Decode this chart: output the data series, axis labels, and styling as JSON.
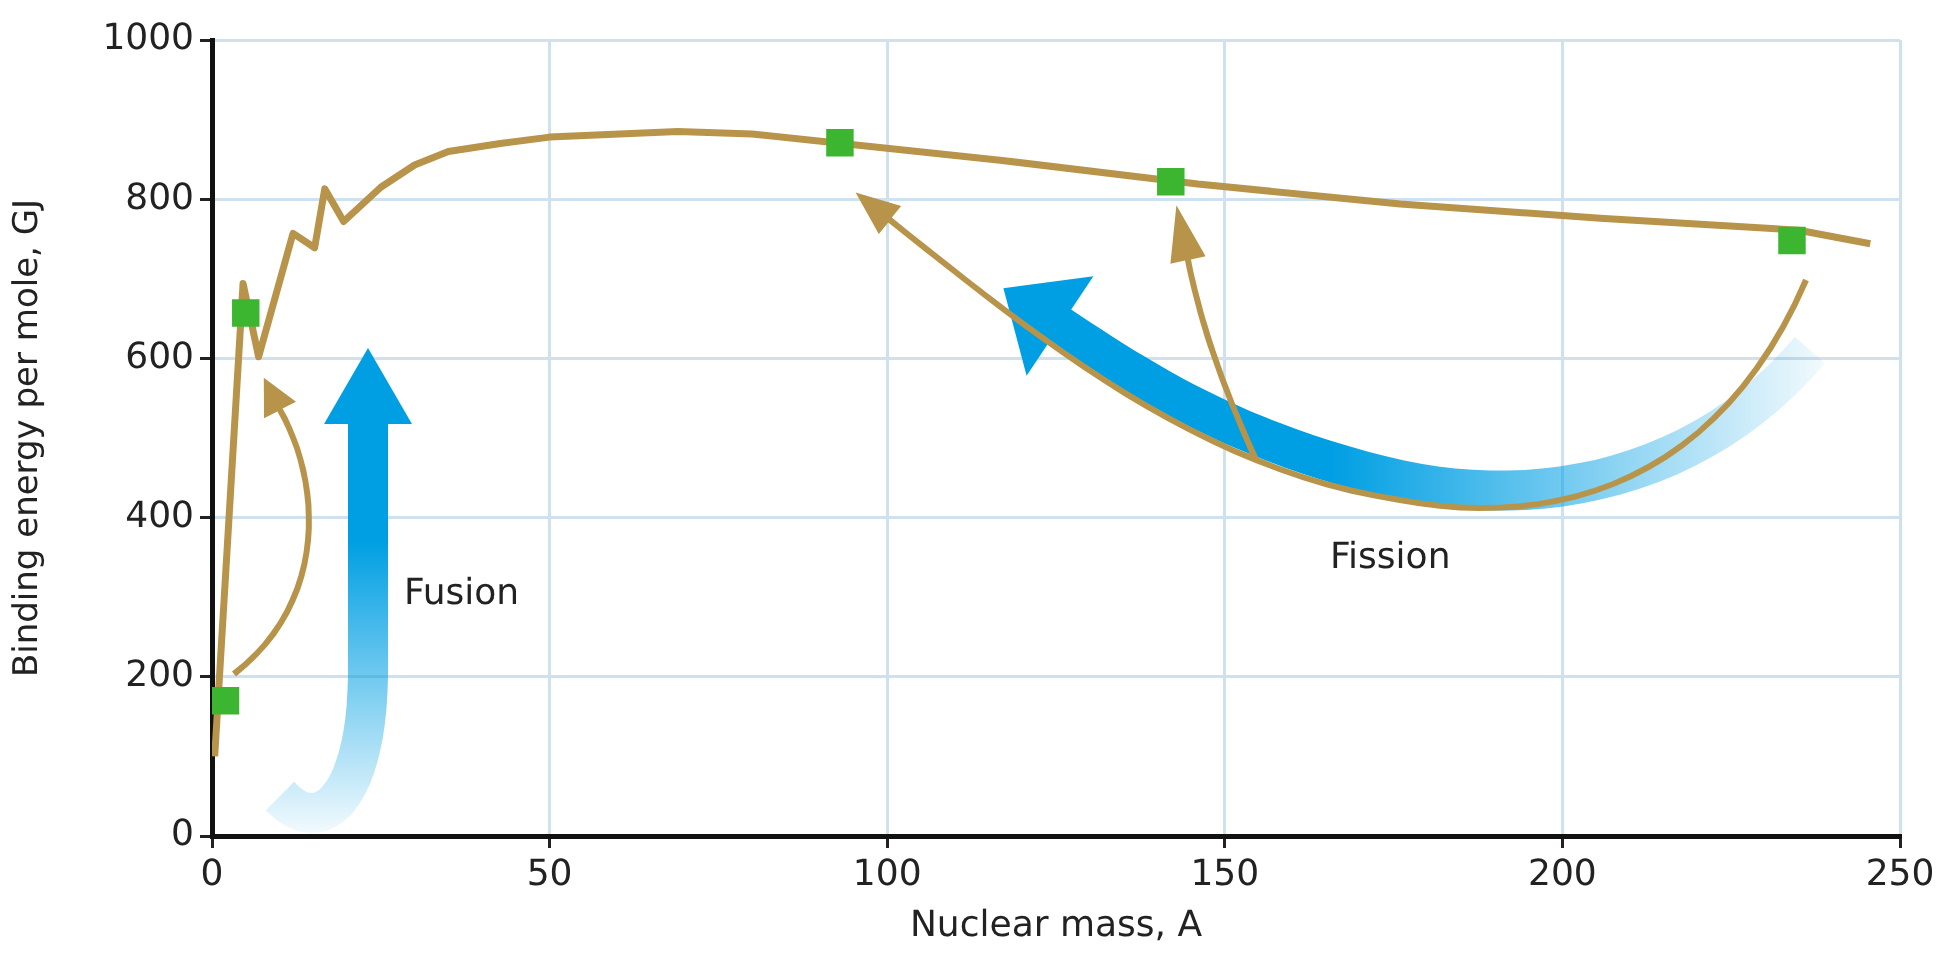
{
  "chart_data": {
    "type": "line",
    "xlabel": "Nuclear mass, A",
    "ylabel": "Binding energy per mole, GJ",
    "series": [
      {
        "color": "#b8944a",
        "x": [
          0.4,
          4.6,
          6.9,
          12,
          15.2,
          16.7,
          19.5,
          25,
          30,
          35,
          42.7,
          50,
          69,
          80,
          116.7,
          146,
          176,
          205.6,
          235,
          245.6
        ],
        "values": [
          100,
          694,
          602,
          757,
          739,
          813,
          772,
          815,
          843,
          860,
          870,
          878,
          885,
          882,
          849,
          819,
          794,
          776,
          761,
          744
        ]
      },
      {
        "type": "scatter",
        "color": "#3cb531",
        "marker": "square",
        "x": [
          2,
          5,
          93,
          142,
          234
        ],
        "values": [
          170,
          657,
          871,
          822,
          748
        ]
      }
    ],
    "xlim": [
      0,
      250
    ],
    "xticks": [
      0,
      50,
      100,
      150,
      200,
      250
    ],
    "ylim": [
      0,
      1000
    ],
    "yticks": [
      0,
      200,
      400,
      600,
      800,
      1000
    ],
    "grid": true,
    "legend": false,
    "line_style": "solid",
    "annotations": [
      "Fusion",
      "Fission"
    ]
  }
}
